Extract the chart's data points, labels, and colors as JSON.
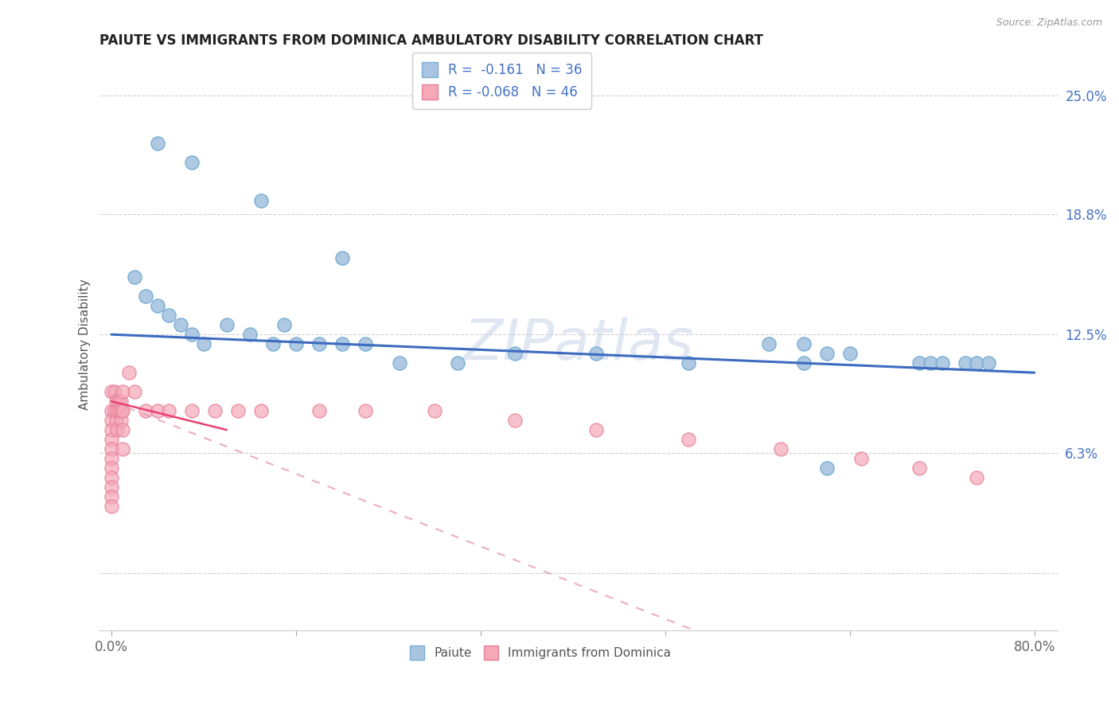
{
  "title": "PAIUTE VS IMMIGRANTS FROM DOMINICA AMBULATORY DISABILITY CORRELATION CHART",
  "source": "Source: ZipAtlas.com",
  "ylabel": "Ambulatory Disability",
  "xlim": [
    -0.01,
    0.82
  ],
  "ylim": [
    -0.03,
    0.27
  ],
  "ytick_vals": [
    0.0,
    0.063,
    0.125,
    0.188,
    0.25
  ],
  "ytick_labels": [
    "",
    "6.3%",
    "12.5%",
    "18.8%",
    "25.0%"
  ],
  "xtick_vals": [
    0.0,
    0.16,
    0.32,
    0.48,
    0.64,
    0.8
  ],
  "xtick_labels": [
    "0.0%",
    "",
    "",
    "",
    "",
    "80.0%"
  ],
  "paiute_color": "#a8c4e0",
  "paiute_edge_color": "#7aafd4",
  "dominica_color": "#f4a8b8",
  "dominica_edge_color": "#e8809a",
  "paiute_line_color": "#3d6bbf",
  "dominica_line_color": "#e89ab0",
  "legend_r1": "R =  -0.161   N = 36",
  "legend_r2": "R = -0.068   N = 46",
  "legend_label1": "Paiute",
  "legend_label2": "Immigrants from Dominica",
  "watermark": "ZIPatlas",
  "background_color": "#ffffff",
  "grid_color": "#d0d0d0",
  "paiute_x": [
    0.04,
    0.07,
    0.13,
    0.2,
    0.02,
    0.03,
    0.04,
    0.05,
    0.06,
    0.07,
    0.08,
    0.1,
    0.12,
    0.15,
    0.18,
    0.2,
    0.22,
    0.35,
    0.42,
    0.5,
    0.57,
    0.6,
    0.62,
    0.64,
    0.7,
    0.71,
    0.72,
    0.74,
    0.75,
    0.76,
    0.6,
    0.62,
    0.14,
    0.16,
    0.25,
    0.3
  ],
  "paiute_y": [
    0.225,
    0.215,
    0.195,
    0.165,
    0.155,
    0.145,
    0.14,
    0.135,
    0.13,
    0.125,
    0.12,
    0.13,
    0.125,
    0.13,
    0.12,
    0.12,
    0.12,
    0.115,
    0.115,
    0.11,
    0.12,
    0.12,
    0.115,
    0.115,
    0.11,
    0.11,
    0.11,
    0.11,
    0.11,
    0.11,
    0.11,
    0.055,
    0.12,
    0.12,
    0.11,
    0.11
  ],
  "dominica_x": [
    0.0,
    0.0,
    0.0,
    0.0,
    0.0,
    0.0,
    0.0,
    0.0,
    0.0,
    0.0,
    0.0,
    0.0,
    0.003,
    0.003,
    0.004,
    0.004,
    0.005,
    0.005,
    0.006,
    0.007,
    0.008,
    0.008,
    0.009,
    0.01,
    0.01,
    0.01,
    0.01,
    0.015,
    0.02,
    0.03,
    0.04,
    0.05,
    0.07,
    0.09,
    0.11,
    0.13,
    0.18,
    0.22,
    0.28,
    0.35,
    0.42,
    0.5,
    0.58,
    0.65,
    0.7,
    0.75
  ],
  "dominica_y": [
    0.095,
    0.085,
    0.08,
    0.075,
    0.07,
    0.065,
    0.06,
    0.055,
    0.05,
    0.045,
    0.04,
    0.035,
    0.095,
    0.085,
    0.09,
    0.08,
    0.085,
    0.075,
    0.09,
    0.085,
    0.09,
    0.08,
    0.085,
    0.095,
    0.085,
    0.075,
    0.065,
    0.105,
    0.095,
    0.085,
    0.085,
    0.085,
    0.085,
    0.085,
    0.085,
    0.085,
    0.085,
    0.085,
    0.085,
    0.08,
    0.075,
    0.07,
    0.065,
    0.06,
    0.055,
    0.05
  ]
}
